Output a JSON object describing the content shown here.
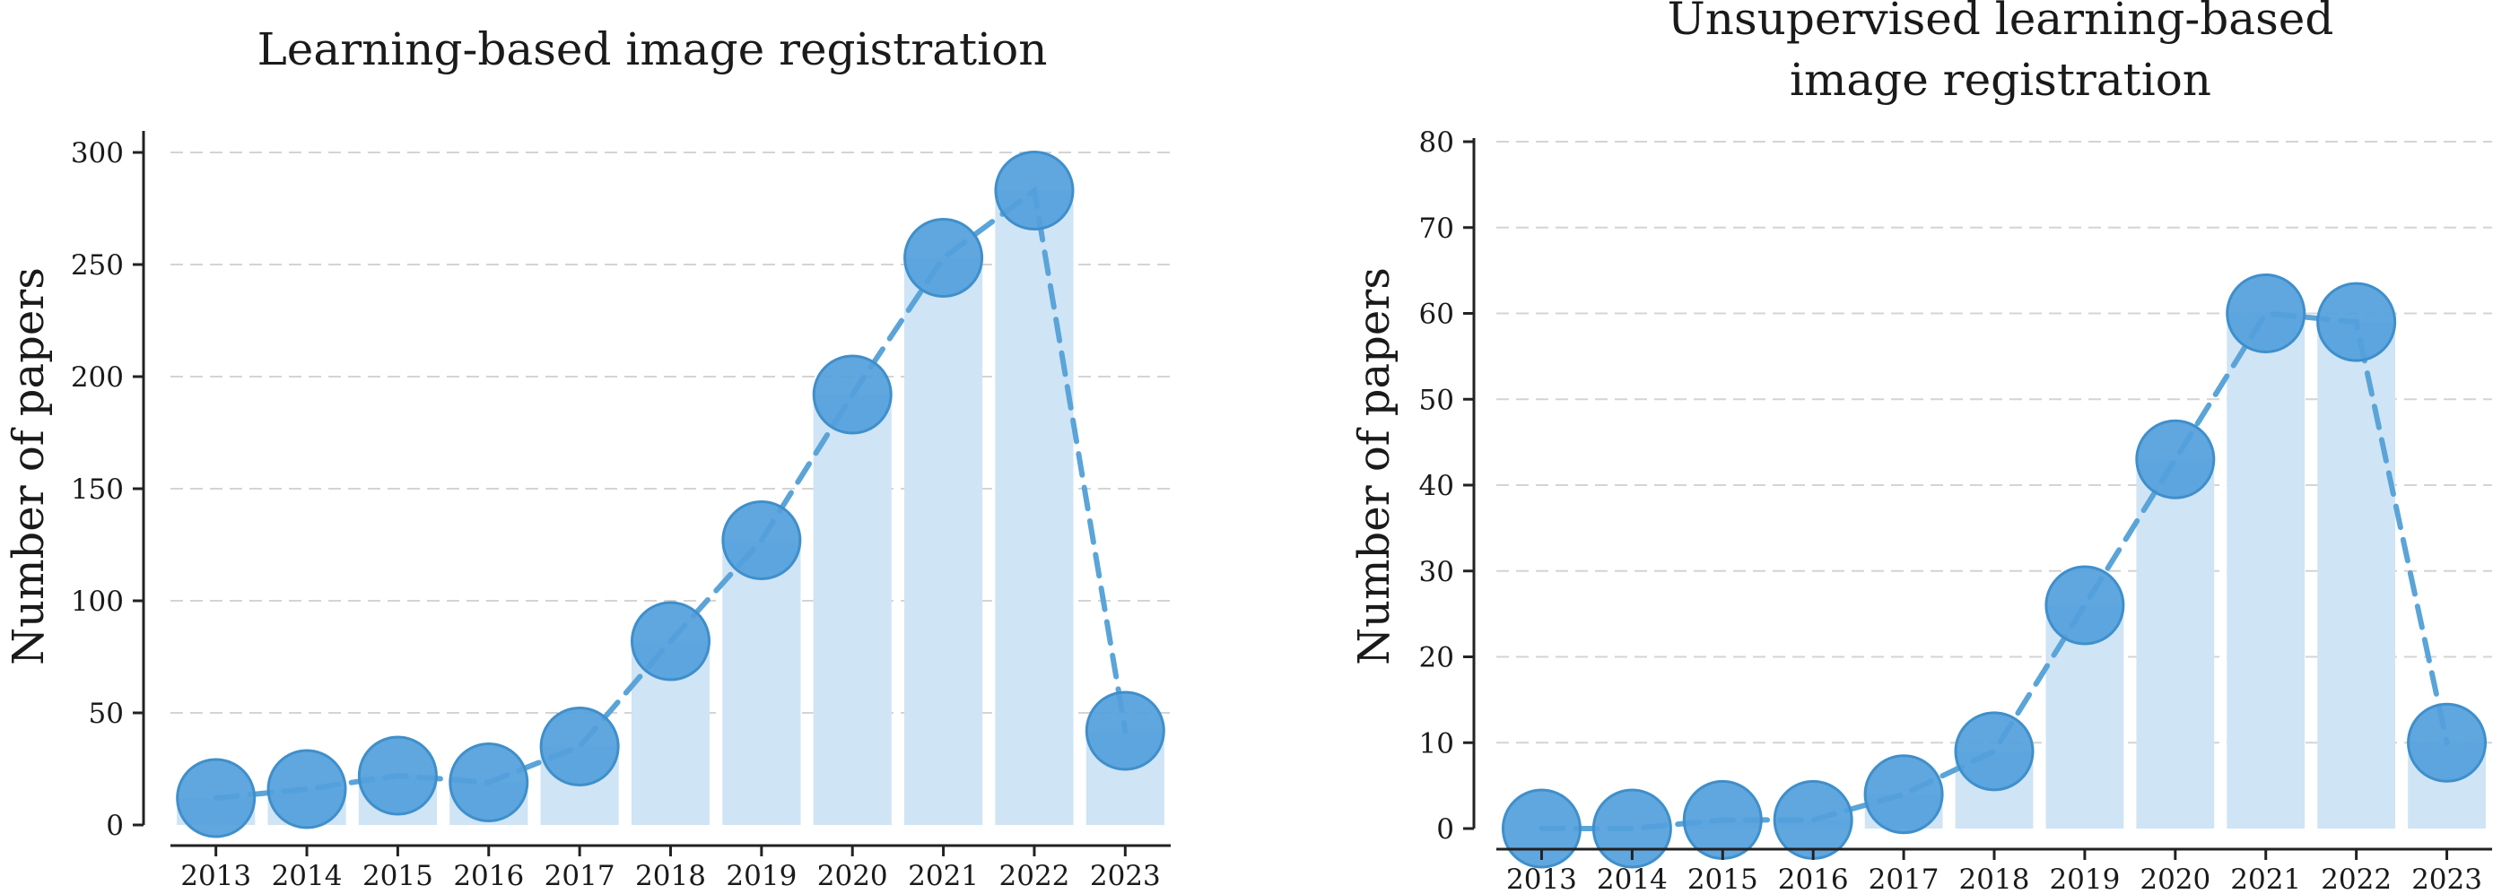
{
  "chart_data": [
    {
      "type": "bar",
      "title": [
        "Learning-based image registration"
      ],
      "ylabel": "Number of papers",
      "categories": [
        "2013",
        "2014",
        "2015",
        "2016",
        "2017",
        "2018",
        "2019",
        "2020",
        "2021",
        "2022",
        "2023"
      ],
      "values": [
        12,
        16,
        22,
        19,
        35,
        82,
        127,
        192,
        253,
        283,
        42
      ],
      "yticks": [
        0,
        50,
        100,
        150,
        200,
        250,
        300
      ],
      "ylim": [
        0,
        310
      ],
      "grid": true,
      "colors": {
        "bar": "#cfe4f5",
        "marker": "#52a0dc",
        "line": "#5aa4d8"
      }
    },
    {
      "type": "bar",
      "title": [
        "Unsupervised learning-based",
        "image registration"
      ],
      "ylabel": "Number of papers",
      "categories": [
        "2013",
        "2014",
        "2015",
        "2016",
        "2017",
        "2018",
        "2019",
        "2020",
        "2021",
        "2022",
        "2023"
      ],
      "values": [
        0,
        0,
        1,
        1,
        4,
        9,
        26,
        43,
        60,
        59,
        10
      ],
      "yticks": [
        0,
        10,
        20,
        30,
        40,
        50,
        60,
        70,
        80
      ],
      "ylim": [
        0,
        80
      ],
      "grid": true,
      "colors": {
        "bar": "#cfe4f5",
        "marker": "#52a0dc",
        "line": "#5aa4d8"
      }
    }
  ]
}
